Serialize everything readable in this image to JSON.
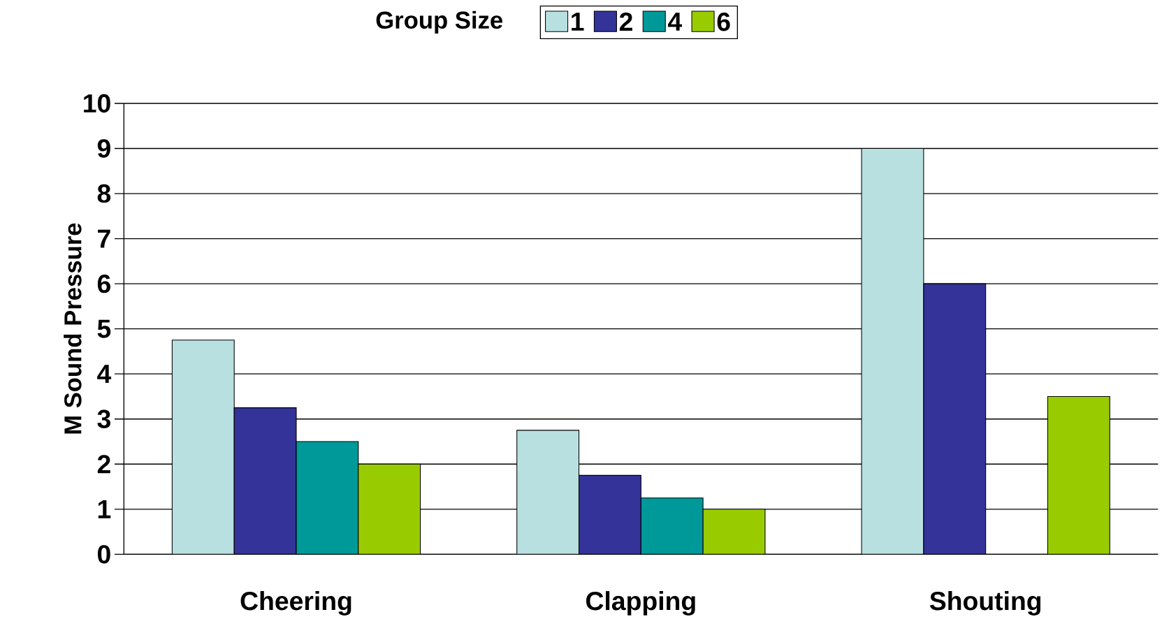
{
  "chart_data": {
    "type": "bar",
    "ylabel": "M Sound Pressure",
    "legend_title": "Group Size",
    "categories": [
      "Cheering",
      "Clapping",
      "Shouting"
    ],
    "series": [
      {
        "name": "1",
        "color": "#b8e0e0",
        "values": [
          4.75,
          2.75,
          9
        ]
      },
      {
        "name": "2",
        "color": "#333399",
        "values": [
          3.25,
          1.75,
          6
        ]
      },
      {
        "name": "4",
        "color": "#009999",
        "values": [
          2.5,
          1.25,
          null
        ]
      },
      {
        "name": "6",
        "color": "#99cc00",
        "values": [
          2,
          1,
          3.5
        ]
      }
    ],
    "ylim": [
      0,
      10
    ],
    "yticks": [
      0,
      1,
      2,
      3,
      4,
      5,
      6,
      7,
      8,
      9,
      10
    ],
    "grid": "y",
    "legend": "top"
  }
}
